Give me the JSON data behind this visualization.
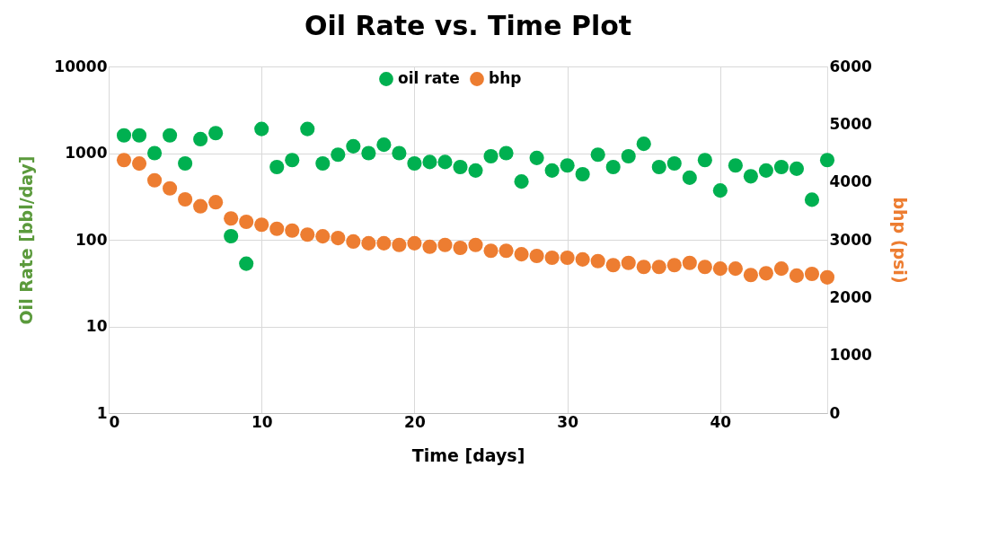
{
  "chart_data": {
    "type": "scatter",
    "title": "Oil Rate vs. Time Plot",
    "xlabel": "Time [days]",
    "ylabel": "Oil Rate [bbl/day]",
    "y2label": "bhp  (psi)",
    "x": [
      1,
      2,
      3,
      4,
      5,
      6,
      7,
      8,
      9,
      10,
      11,
      12,
      13,
      14,
      15,
      16,
      17,
      18,
      19,
      20,
      21,
      22,
      23,
      24,
      25,
      26,
      27,
      28,
      29,
      30,
      31,
      32,
      33,
      34,
      35,
      36,
      37,
      38,
      39,
      40,
      41,
      42,
      43,
      44,
      45,
      46,
      47
    ],
    "series": [
      {
        "name": "oil rate",
        "color": "#00b050",
        "values": [
          1600,
          1600,
          1000,
          1600,
          760,
          1450,
          1700,
          110,
          53,
          1900,
          690,
          830,
          1900,
          760,
          960,
          1200,
          1000,
          1250,
          1000,
          760,
          790,
          790,
          690,
          630,
          920,
          1000,
          470,
          880,
          630,
          720,
          570,
          960,
          690,
          920,
          1280,
          690,
          760,
          520,
          830,
          370,
          720,
          540,
          630,
          690,
          660,
          290,
          830
        ]
      },
      {
        "name": "bhp",
        "color": "#ed7d31",
        "axis": "y2",
        "values": [
          4380,
          4320,
          4030,
          3890,
          3700,
          3580,
          3650,
          3370,
          3310,
          3260,
          3190,
          3160,
          3090,
          3060,
          3030,
          2970,
          2940,
          2940,
          2910,
          2940,
          2880,
          2910,
          2860,
          2910,
          2810,
          2810,
          2750,
          2720,
          2690,
          2690,
          2660,
          2630,
          2560,
          2600,
          2530,
          2530,
          2560,
          2600,
          2530,
          2500,
          2500,
          2390,
          2420,
          2500,
          2380,
          2410,
          2350
        ]
      }
    ],
    "xlim": [
      0,
      47
    ],
    "xticks": [
      0,
      10,
      20,
      30,
      40
    ],
    "ylim": [
      1,
      10000
    ],
    "yticks": [
      1,
      10,
      100,
      1000,
      10000
    ],
    "y2lim": [
      0,
      6000
    ],
    "y2ticks": [
      0,
      1000,
      2000,
      3000,
      4000,
      5000,
      6000
    ],
    "log": "y",
    "grid": true,
    "legend": "top",
    "marker": "circle"
  }
}
